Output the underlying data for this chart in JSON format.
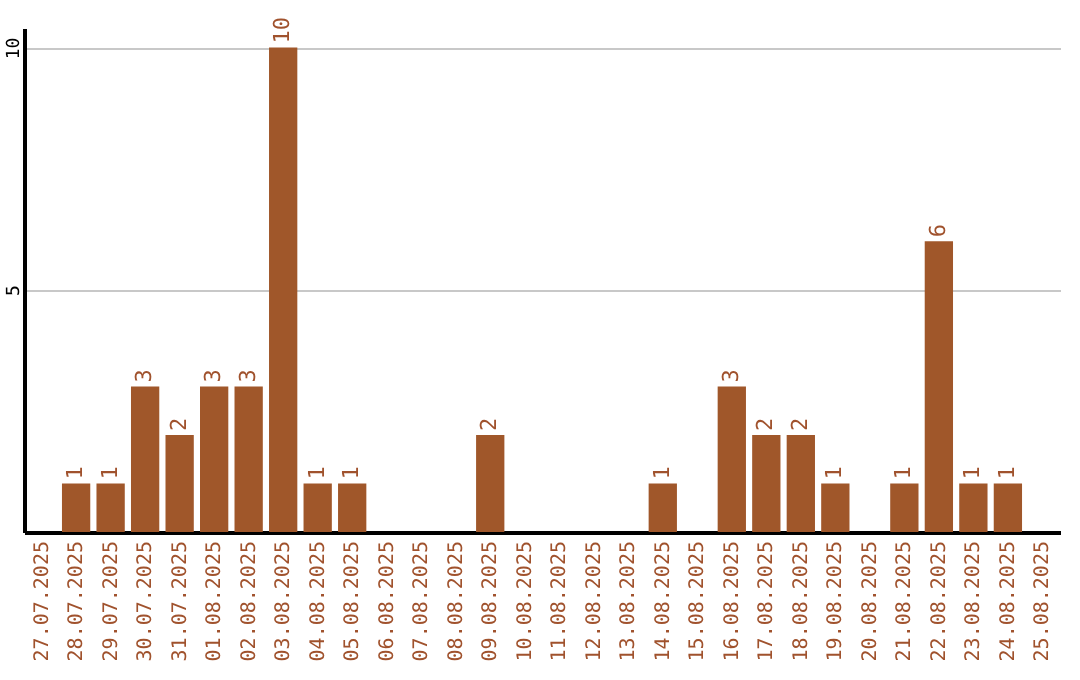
{
  "chart_data": {
    "type": "bar",
    "categories": [
      "27.07.2025",
      "28.07.2025",
      "29.07.2025",
      "30.07.2025",
      "31.07.2025",
      "01.08.2025",
      "02.08.2025",
      "03.08.2025",
      "04.08.2025",
      "05.08.2025",
      "06.08.2025",
      "07.08.2025",
      "08.08.2025",
      "09.08.2025",
      "10.08.2025",
      "11.08.2025",
      "12.08.2025",
      "13.08.2025",
      "14.08.2025",
      "15.08.2025",
      "16.08.2025",
      "17.08.2025",
      "18.08.2025",
      "19.08.2025",
      "20.08.2025",
      "21.08.2025",
      "22.08.2025",
      "23.08.2025",
      "24.08.2025",
      "25.08.2025"
    ],
    "values": [
      0,
      1,
      1,
      3,
      2,
      3,
      3,
      10,
      1,
      1,
      0,
      0,
      0,
      2,
      0,
      0,
      0,
      0,
      1,
      0,
      3,
      2,
      2,
      1,
      0,
      1,
      6,
      1,
      1,
      0
    ],
    "value_labels": [
      null,
      "1",
      "1",
      "3",
      "2",
      "3",
      "3",
      "10",
      "1",
      "1",
      null,
      null,
      null,
      "2",
      null,
      null,
      null,
      null,
      "1",
      null,
      "3",
      "2",
      "2",
      "1",
      null,
      "1",
      "6",
      "1",
      "1",
      null
    ],
    "color": "#a0572a",
    "ylim": [
      0,
      10.4
    ],
    "yticks": [
      5,
      10
    ],
    "grid": "y"
  }
}
